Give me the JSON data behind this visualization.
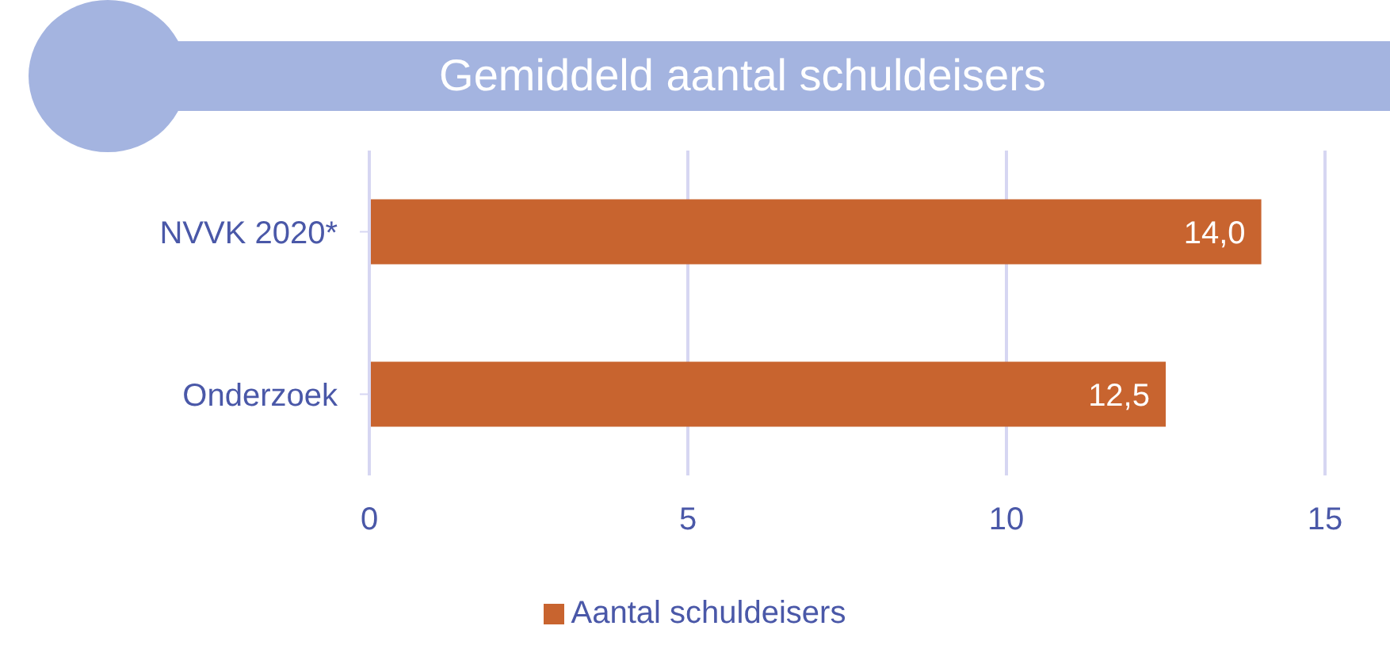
{
  "chart_data": {
    "type": "bar",
    "orientation": "horizontal",
    "title": "Gemiddeld aantal schuldeisers",
    "categories": [
      "NVVK 2020*",
      "Onderzoek"
    ],
    "series": [
      {
        "name": "Aantal schuldeisers",
        "color": "#c8642f",
        "values": [
          14.0,
          12.5
        ],
        "value_labels": [
          "14,0",
          "12,5"
        ]
      }
    ],
    "xlim": [
      0,
      15
    ],
    "xticks": [
      0,
      5,
      10,
      15
    ],
    "grid": "x",
    "legend": "bottom"
  }
}
